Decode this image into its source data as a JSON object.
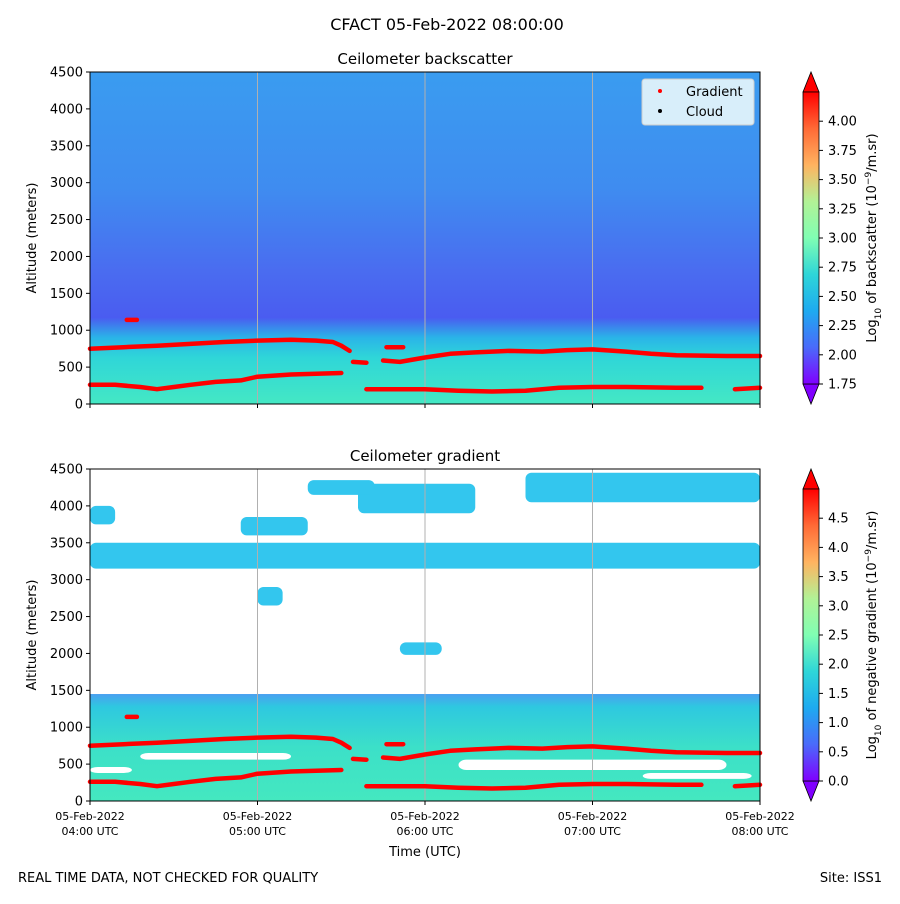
{
  "suptitle": "CFACT 05-Feb-2022 08:00:00",
  "footer": {
    "left": "REAL TIME DATA, NOT CHECKED FOR QUALITY",
    "right": "Site: ISS1"
  },
  "colors": {
    "gradient_marker": "#ff0000",
    "cloud_marker": "#000000",
    "top_background": "#3aa8f0",
    "layer_band": "#2fd6d8",
    "low_band": "#40e8c0"
  },
  "chart_data": [
    {
      "type": "heatmap",
      "title": "Ceilometer backscatter",
      "xlabel": "",
      "ylabel": "Altitude (meters)",
      "ylim": [
        0,
        4500
      ],
      "yticks": [
        0,
        500,
        1000,
        1500,
        2000,
        2500,
        3000,
        3500,
        4000,
        4500
      ],
      "xlim": [
        4,
        8
      ],
      "xtick_positions": [
        4,
        5,
        6,
        7,
        8
      ],
      "colorbar": {
        "label_html": "Log<tspan baseline-shift=\"sub\" font-size=\"9\">10</tspan> of backscatter (10<tspan baseline-shift=\"super\" font-size=\"9\">−9</tspan>/m.sr)",
        "min": 1.75,
        "max": 4.25,
        "ticks": [
          1.75,
          2.0,
          2.25,
          2.5,
          2.75,
          3.0,
          3.25,
          3.5,
          3.75,
          4.0
        ],
        "tick_labels": [
          "1.75",
          "2.00",
          "2.25",
          "2.50",
          "2.75",
          "3.00",
          "3.25",
          "3.50",
          "3.75",
          "4.00"
        ]
      },
      "legend": {
        "position": "top-right",
        "entries": [
          {
            "name": "Gradient",
            "color": "#ff0000"
          },
          {
            "name": "Cloud",
            "color": "#000000"
          }
        ]
      },
      "series": [
        {
          "name": "Gradient (upper layer)",
          "segments": [
            [
              [
                4.0,
                750
              ],
              [
                4.2,
                770
              ],
              [
                4.4,
                790
              ],
              [
                4.6,
                815
              ],
              [
                4.8,
                840
              ],
              [
                5.0,
                860
              ],
              [
                5.2,
                870
              ],
              [
                5.35,
                860
              ],
              [
                5.45,
                840
              ],
              [
                5.5,
                790
              ],
              [
                5.55,
                720
              ]
            ],
            [
              [
                5.57,
                570
              ],
              [
                5.65,
                560
              ]
            ],
            [
              [
                5.75,
                590
              ],
              [
                5.85,
                570
              ],
              [
                6.0,
                630
              ],
              [
                6.15,
                680
              ],
              [
                6.3,
                700
              ],
              [
                6.5,
                720
              ],
              [
                6.7,
                710
              ],
              [
                6.85,
                730
              ],
              [
                7.0,
                740
              ],
              [
                7.2,
                710
              ],
              [
                7.35,
                680
              ],
              [
                7.5,
                660
              ],
              [
                7.8,
                650
              ],
              [
                8.0,
                650
              ]
            ]
          ]
        },
        {
          "name": "Gradient (isolated)",
          "segments": [
            [
              [
                4.22,
                1140
              ],
              [
                4.28,
                1140
              ]
            ],
            [
              [
                5.77,
                770
              ],
              [
                5.87,
                770
              ]
            ]
          ]
        },
        {
          "name": "Gradient (lower layer)",
          "segments": [
            [
              [
                4.0,
                260
              ],
              [
                4.15,
                260
              ],
              [
                4.3,
                230
              ],
              [
                4.4,
                200
              ],
              [
                4.5,
                230
              ],
              [
                4.6,
                260
              ],
              [
                4.75,
                300
              ],
              [
                4.9,
                320
              ],
              [
                5.0,
                370
              ],
              [
                5.2,
                400
              ],
              [
                5.5,
                420
              ]
            ],
            [
              [
                5.65,
                200
              ],
              [
                6.0,
                200
              ],
              [
                6.2,
                180
              ],
              [
                6.4,
                170
              ],
              [
                6.6,
                180
              ],
              [
                6.8,
                220
              ],
              [
                7.0,
                230
              ],
              [
                7.2,
                230
              ],
              [
                7.5,
                220
              ],
              [
                7.65,
                220
              ]
            ],
            [
              [
                7.85,
                200
              ],
              [
                8.0,
                220
              ]
            ]
          ]
        }
      ]
    },
    {
      "type": "heatmap",
      "title": "Ceilometer gradient",
      "xlabel": "Time (UTC)",
      "ylabel": "Altitude (meters)",
      "ylim": [
        0,
        4500
      ],
      "yticks": [
        0,
        500,
        1000,
        1500,
        2000,
        2500,
        3000,
        3500,
        4000,
        4500
      ],
      "xlim": [
        4,
        8
      ],
      "xtick_positions": [
        4,
        5,
        6,
        7,
        8
      ],
      "xtick_labels": [
        [
          "05-Feb-2022",
          "04:00 UTC"
        ],
        [
          "05-Feb-2022",
          "05:00 UTC"
        ],
        [
          "05-Feb-2022",
          "06:00 UTC"
        ],
        [
          "05-Feb-2022",
          "07:00 UTC"
        ],
        [
          "05-Feb-2022",
          "08:00 UTC"
        ]
      ],
      "colorbar": {
        "label_html": "Log<tspan baseline-shift=\"sub\" font-size=\"9\">10</tspan> of negative gradient (10<tspan baseline-shift=\"super\" font-size=\"9\">−9</tspan>/m.sr)",
        "min": 0.0,
        "max": 5.0,
        "ticks": [
          0.0,
          0.5,
          1.0,
          1.5,
          2.0,
          2.5,
          3.0,
          3.5,
          4.0,
          4.5
        ],
        "tick_labels": [
          "0.0",
          "0.5",
          "1.0",
          "1.5",
          "2.0",
          "2.5",
          "3.0",
          "3.5",
          "4.0",
          "4.5"
        ]
      },
      "cloud_layers": [
        {
          "t0": 4.0,
          "t1": 8.0,
          "a0": 0,
          "a1": 1450
        },
        {
          "t0": 4.0,
          "t1": 8.0,
          "a0": 3150,
          "a1": 3500
        },
        {
          "t0": 5.6,
          "t1": 6.3,
          "a0": 3900,
          "a1": 4300
        },
        {
          "t0": 6.6,
          "t1": 8.0,
          "a0": 4050,
          "a1": 4450
        },
        {
          "t0": 4.0,
          "t1": 4.15,
          "a0": 3750,
          "a1": 4000
        },
        {
          "t0": 5.3,
          "t1": 5.7,
          "a0": 4150,
          "a1": 4350
        },
        {
          "t0": 5.0,
          "t1": 5.15,
          "a0": 2650,
          "a1": 2900
        },
        {
          "t0": 5.85,
          "t1": 6.1,
          "a0": 1980,
          "a1": 2150
        },
        {
          "t0": 4.9,
          "t1": 5.3,
          "a0": 3600,
          "a1": 3850
        }
      ],
      "series": [
        {
          "name": "Gradient (upper layer)",
          "segments": [
            [
              [
                4.0,
                750
              ],
              [
                4.2,
                770
              ],
              [
                4.4,
                790
              ],
              [
                4.6,
                815
              ],
              [
                4.8,
                840
              ],
              [
                5.0,
                860
              ],
              [
                5.2,
                870
              ],
              [
                5.35,
                860
              ],
              [
                5.45,
                840
              ],
              [
                5.5,
                790
              ],
              [
                5.55,
                720
              ]
            ],
            [
              [
                5.57,
                570
              ],
              [
                5.65,
                560
              ]
            ],
            [
              [
                5.75,
                590
              ],
              [
                5.85,
                570
              ],
              [
                6.0,
                630
              ],
              [
                6.15,
                680
              ],
              [
                6.3,
                700
              ],
              [
                6.5,
                720
              ],
              [
                6.7,
                710
              ],
              [
                6.85,
                730
              ],
              [
                7.0,
                740
              ],
              [
                7.2,
                710
              ],
              [
                7.35,
                680
              ],
              [
                7.5,
                660
              ],
              [
                7.8,
                650
              ],
              [
                8.0,
                650
              ]
            ]
          ]
        },
        {
          "name": "Gradient (isolated)",
          "segments": [
            [
              [
                4.22,
                1140
              ],
              [
                4.28,
                1140
              ]
            ],
            [
              [
                5.77,
                770
              ],
              [
                5.87,
                770
              ]
            ]
          ]
        },
        {
          "name": "Gradient (lower layer)",
          "segments": [
            [
              [
                4.0,
                260
              ],
              [
                4.15,
                260
              ],
              [
                4.3,
                230
              ],
              [
                4.4,
                200
              ],
              [
                4.5,
                230
              ],
              [
                4.6,
                260
              ],
              [
                4.75,
                300
              ],
              [
                4.9,
                320
              ],
              [
                5.0,
                370
              ],
              [
                5.2,
                400
              ],
              [
                5.5,
                420
              ]
            ],
            [
              [
                5.65,
                200
              ],
              [
                6.0,
                200
              ],
              [
                6.2,
                180
              ],
              [
                6.4,
                170
              ],
              [
                6.6,
                180
              ],
              [
                6.8,
                220
              ],
              [
                7.0,
                230
              ],
              [
                7.2,
                230
              ],
              [
                7.5,
                220
              ],
              [
                7.65,
                220
              ]
            ],
            [
              [
                7.85,
                200
              ],
              [
                8.0,
                220
              ]
            ]
          ]
        }
      ]
    }
  ]
}
